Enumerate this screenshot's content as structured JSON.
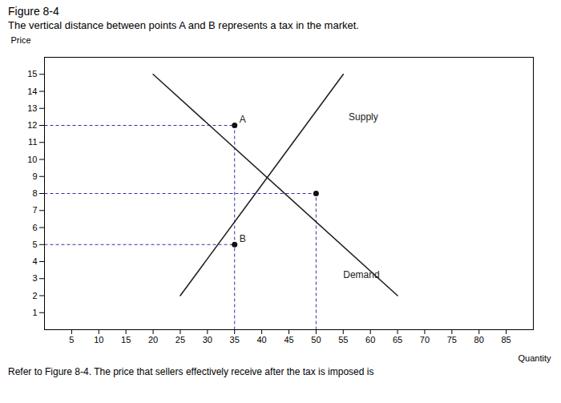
{
  "chart_data": {
    "type": "line",
    "title": "Figure 8-4",
    "subtitle": "The vertical distance between points A and B represents a tax in the market.",
    "caption": "Refer to Figure 8-4. The price that sellers effectively receive after the tax is imposed is",
    "xlabel": "Quantity",
    "ylabel": "Price",
    "xlim": [
      0,
      90
    ],
    "ylim": [
      0,
      16
    ],
    "xticks": [
      5,
      10,
      15,
      20,
      25,
      30,
      35,
      40,
      45,
      50,
      55,
      60,
      65,
      70,
      75,
      80,
      85
    ],
    "yticks": [
      1,
      2,
      3,
      4,
      5,
      6,
      7,
      8,
      9,
      10,
      11,
      12,
      13,
      14,
      15
    ],
    "grid": false,
    "series": [
      {
        "name": "Supply",
        "color": "#222222",
        "x": [
          25,
          55
        ],
        "values": [
          2,
          15
        ]
      },
      {
        "name": "Demand",
        "color": "#222222",
        "x": [
          20,
          65
        ],
        "values": [
          15,
          2
        ]
      }
    ],
    "annotations": [
      {
        "text": "Supply",
        "x": 56,
        "y": 12.5
      },
      {
        "text": "Demand",
        "x": 55,
        "y": 3.2
      }
    ],
    "points": {
      "color": "#111111",
      "marker": "circle",
      "values": [
        {
          "label": "A",
          "x": 35,
          "y": 12
        },
        {
          "label": "B",
          "x": 35,
          "y": 5
        },
        {
          "x": 50,
          "y": 8
        }
      ]
    },
    "reference_lines": {
      "color": "#3333aa",
      "line_style": "dashed",
      "segments": [
        {
          "x1": 0,
          "y1": 12,
          "x2": 35,
          "y2": 12
        },
        {
          "x1": 0,
          "y1": 8,
          "x2": 50,
          "y2": 8
        },
        {
          "x1": 0,
          "y1": 5,
          "x2": 35,
          "y2": 5
        },
        {
          "x1": 35,
          "y1": 0,
          "x2": 35,
          "y2": 12
        },
        {
          "x1": 50,
          "y1": 0,
          "x2": 50,
          "y2": 8
        }
      ]
    }
  }
}
